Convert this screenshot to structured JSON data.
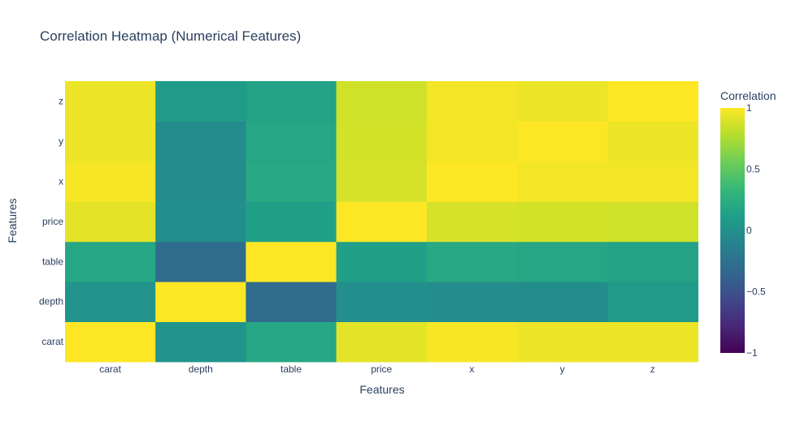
{
  "chart_data": {
    "type": "heatmap",
    "title": "Correlation Heatmap (Numerical Features)",
    "xlabel": "Features",
    "ylabel": "Features",
    "x": [
      "carat",
      "depth",
      "table",
      "price",
      "x",
      "y",
      "z"
    ],
    "y": [
      "carat",
      "depth",
      "table",
      "price",
      "x",
      "y",
      "z"
    ],
    "z": [
      [
        1.0,
        0.03,
        0.18,
        0.92,
        0.98,
        0.95,
        0.95
      ],
      [
        0.03,
        1.0,
        -0.3,
        -0.01,
        -0.03,
        -0.03,
        0.09
      ],
      [
        0.18,
        -0.3,
        1.0,
        0.13,
        0.2,
        0.18,
        0.15
      ],
      [
        0.92,
        -0.01,
        0.13,
        1.0,
        0.88,
        0.87,
        0.86
      ],
      [
        0.98,
        -0.03,
        0.2,
        0.88,
        1.0,
        0.97,
        0.97
      ],
      [
        0.95,
        -0.03,
        0.18,
        0.87,
        0.97,
        1.0,
        0.95
      ],
      [
        0.95,
        0.09,
        0.15,
        0.86,
        0.97,
        0.95,
        1.0
      ]
    ],
    "zmin": -1,
    "zmax": 1,
    "colorscale": "Viridis",
    "colorbar": {
      "title": "Correlation",
      "ticks": [
        1,
        0.5,
        0,
        -0.5,
        -1
      ],
      "tick_labels": [
        "1",
        "0.5",
        "0",
        "−0.5",
        "−1"
      ]
    },
    "colors": {
      "title": "#2a3f5f",
      "tick": "#2a3f5f",
      "background": "#ffffff"
    }
  }
}
